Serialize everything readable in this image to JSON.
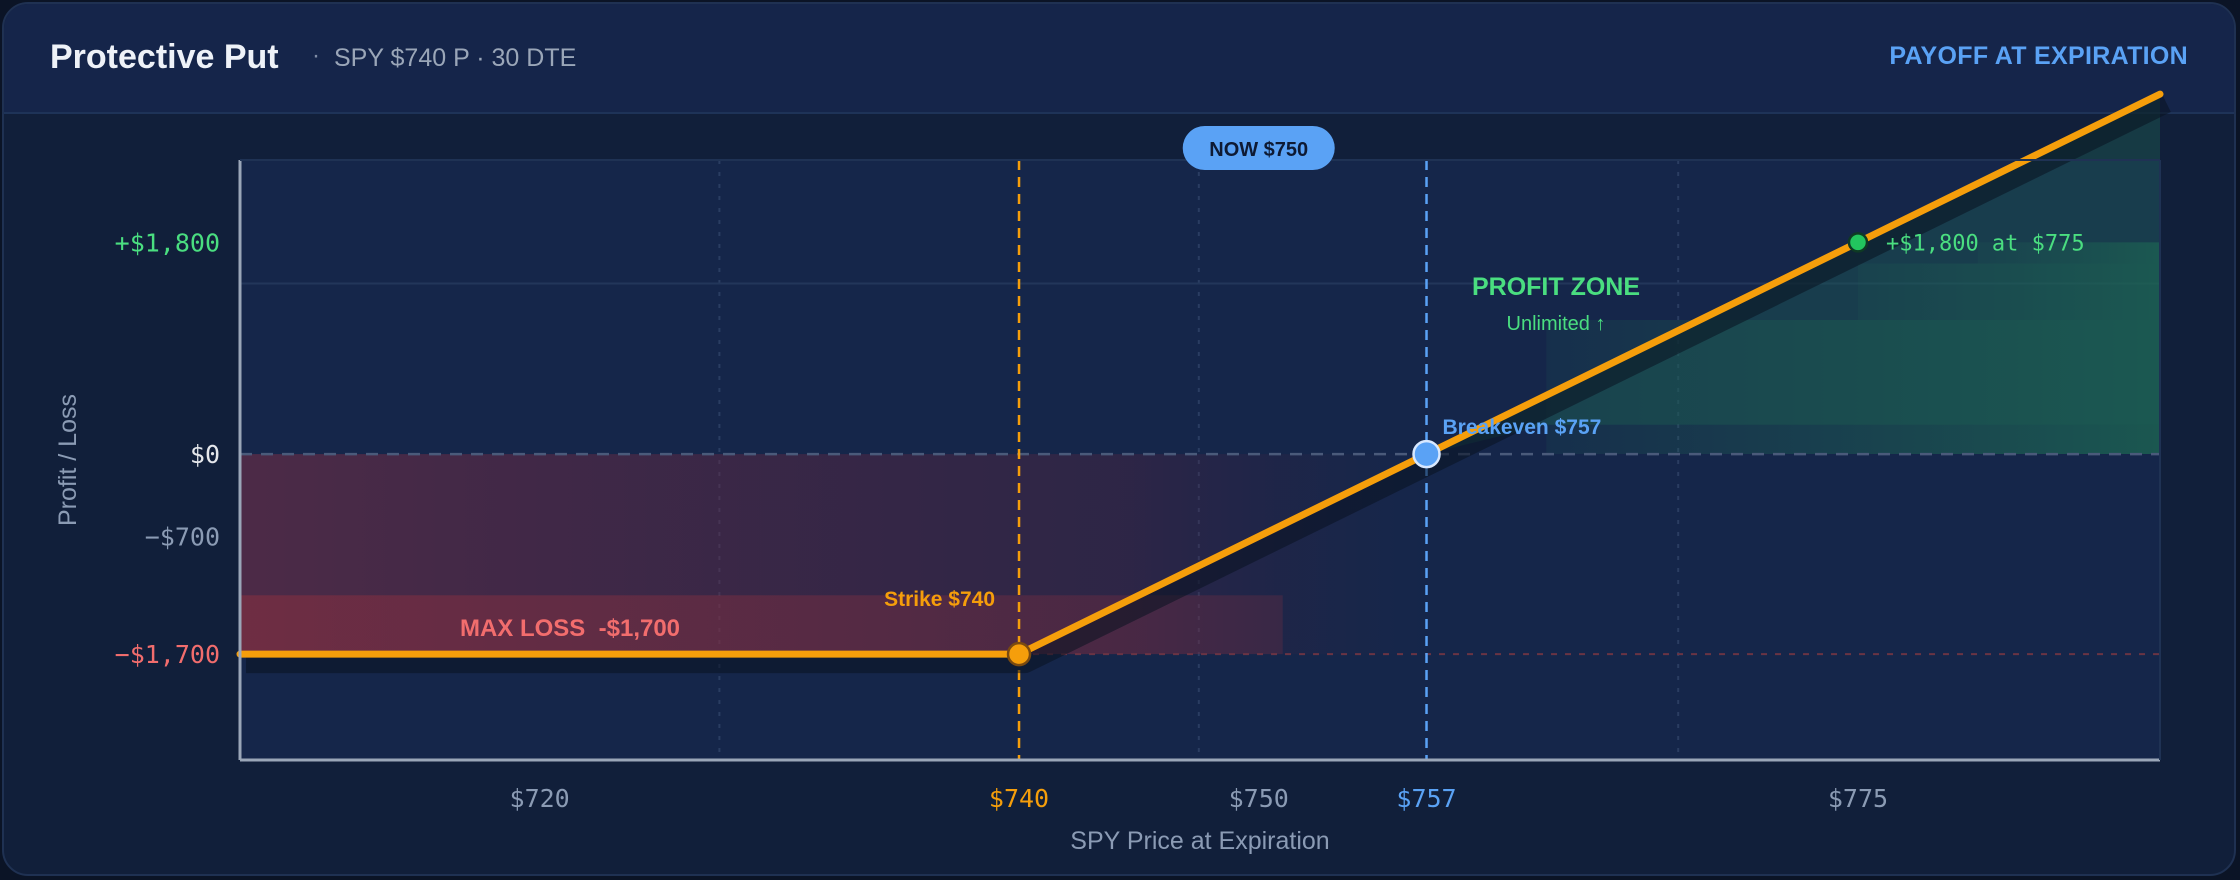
{
  "header": {
    "title": "Protective Put",
    "separator": "·",
    "subtitle": "SPY $740 P · 30 DTE",
    "mode_label": "PAYOFF AT EXPIRATION"
  },
  "colors": {
    "payoff_line": "#f59e0b",
    "profit": "#4ade80",
    "loss": "#f26d6d",
    "breakeven": "#5aa2f5",
    "now_badge": "#5aa2f5"
  },
  "chart_data": {
    "type": "line",
    "xlabel": "SPY Price at Expiration",
    "ylabel": "Profit / Loss",
    "xlim": [
      707.5,
      787.6
    ],
    "ylim": [
      -2600,
      2500
    ],
    "x_ticks": [
      {
        "value": 720,
        "label": "$720",
        "color": "#8b9bb4"
      },
      {
        "value": 740,
        "label": "$740",
        "color": "#f59e0b"
      },
      {
        "value": 750,
        "label": "$750",
        "color": "#8b9bb4"
      },
      {
        "value": 757,
        "label": "$757",
        "color": "#5aa2f5"
      },
      {
        "value": 775,
        "label": "$775",
        "color": "#8b9bb4"
      }
    ],
    "y_ticks": [
      {
        "value": 1800,
        "label": "+$1,800",
        "color": "#4ade80"
      },
      {
        "value": 0,
        "label": "$0",
        "color": "#e5e7eb"
      },
      {
        "value": -700,
        "label": "−$700",
        "color": "#8b9bb4"
      },
      {
        "value": -1700,
        "label": "−$1,700",
        "color": "#f26d6d"
      }
    ],
    "series": [
      {
        "x": [
          707.5,
          740,
          757,
          775,
          787.6
        ],
        "y": [
          -1700,
          -1700,
          0,
          1800,
          3060
        ]
      }
    ],
    "key_points": [
      {
        "x": 740,
        "y": -1700,
        "label": "Strike $740"
      },
      {
        "x": 757,
        "y": 0,
        "label": "Breakeven $757"
      },
      {
        "x": 775,
        "y": 1800,
        "label": "+$1,800 at $775"
      }
    ],
    "now_marker": {
      "x": 750,
      "label": "NOW $750"
    },
    "zones": {
      "loss_label": "MAX LOSS  -$1,700",
      "profit_label": "PROFIT ZONE",
      "profit_sublabel": "Unlimited ↑"
    },
    "grid": true,
    "legend": "none"
  }
}
